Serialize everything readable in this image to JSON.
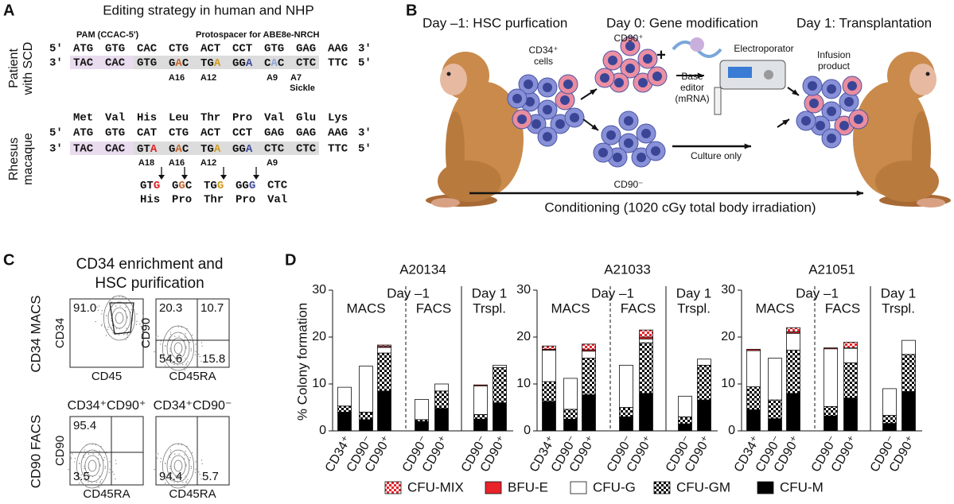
{
  "panel_a": {
    "letter": "A",
    "title": "Editing strategy in human and NHP",
    "human": {
      "label": [
        "Patient",
        "with SCD"
      ],
      "pam": "PAM (CCAC-5')",
      "protospacer": "Protospacer for ABE8e-NRCH",
      "top": {
        "start": "5'",
        "codons": [
          "ATG",
          "GTG",
          "CAC",
          "CTG",
          "ACT",
          "CCT",
          "GTG",
          "GAG",
          "AAG"
        ],
        "end": "3'"
      },
      "bottom": {
        "start": "3'",
        "codons": [
          "TAC",
          "CAC",
          "GTG",
          "GAC",
          "TGA",
          "GGA",
          "CAC",
          "CTC",
          "TTC"
        ],
        "end": "5'"
      },
      "bases": [
        "A16",
        "A12",
        "A9",
        "A7"
      ],
      "sickle": "Sickle"
    },
    "rhesus": {
      "label": [
        "Rhesus",
        "macaque"
      ],
      "amino": [
        "Met",
        "Val",
        "His",
        "Leu",
        "Thr",
        "Pro",
        "Val",
        "Glu",
        "Lys"
      ],
      "top": {
        "start": "5'",
        "codons": [
          "ATG",
          "GTG",
          "CAT",
          "CTG",
          "ACT",
          "CCT",
          "GAG",
          "GAG",
          "AAG"
        ],
        "end": "3'"
      },
      "bottom": {
        "start": "3'",
        "codons": [
          "TAC",
          "CAC",
          "GTA",
          "GAC",
          "TGA",
          "GGA",
          "CTC",
          "CTC",
          "TTC"
        ],
        "end": "5'"
      },
      "bases": [
        "A18",
        "A16",
        "A12",
        "A9"
      ],
      "edited": [
        "GTG",
        "GGC",
        "TGG",
        "GGG",
        "CTC"
      ],
      "edited_amino": [
        "His",
        "Pro",
        "Thr",
        "Pro",
        "Val"
      ]
    }
  },
  "panel_b": {
    "letter": "B",
    "day_minus1": "Day –1: HSC purfication",
    "day0": "Day 0: Gene modification",
    "day1": "Day 1: Transplantation",
    "cd34_cells": [
      "CD34⁺",
      "cells"
    ],
    "cd90_pos": "CD90⁺",
    "plus": "+",
    "base_editor": [
      "Base",
      "editor",
      "(mRNA)"
    ],
    "electroporator": "Electroporator",
    "infusion": [
      "Infusion",
      "product"
    ],
    "culture_only": "Culture only",
    "cd90_neg": "CD90⁻",
    "conditioning": "Conditioning (1020 cGy total body irradiation)"
  },
  "panel_c": {
    "letter": "C",
    "title": [
      "CD34 enrichment and",
      "HSC purification"
    ],
    "rows": [
      "CD34  MACS",
      "CD90  FACS"
    ],
    "plots": [
      {
        "xlabel": "CD45",
        "ylabel": "CD34",
        "numbers": [
          "91.0"
        ]
      },
      {
        "xlabel": "CD45RA",
        "ylabel": "CD90",
        "numbers": [
          "20.3",
          "10.7",
          "54.6",
          "15.8"
        ]
      },
      {
        "title": "CD34⁺CD90⁺",
        "xlabel": "CD45RA",
        "ylabel": "CD90",
        "numbers": [
          "95.4",
          "3.5"
        ]
      },
      {
        "title": "CD34⁺CD90⁻",
        "xlabel": "CD45RA",
        "numbers": [
          "94.4",
          "5.7"
        ]
      }
    ]
  },
  "panel_d": {
    "letter": "D"
  },
  "chart_data": {
    "type": "bar",
    "stacked": true,
    "facets": [
      "A20134",
      "A21033",
      "A21051"
    ],
    "ylabel": "% Colony formation",
    "ylim": [
      0,
      30
    ],
    "yticks": [
      0,
      10,
      20,
      30
    ],
    "days": [
      "Day –1",
      "Day 1"
    ],
    "groups": [
      {
        "label": "MACS",
        "categories": [
          "CD34⁺",
          "CD90⁻",
          "CD90⁺"
        ]
      },
      {
        "label": "FACS",
        "categories": [
          "CD90⁻",
          "CD90⁺"
        ]
      },
      {
        "label": "Trspl.",
        "categories": [
          "CD90⁻",
          "CD90⁺"
        ]
      }
    ],
    "series": [
      {
        "name": "CFU-MIX",
        "color": "#e8232a",
        "pattern": "checker",
        "values": [
          [
            0,
            0,
            0.3,
            0,
            0,
            0,
            0
          ],
          [
            0.7,
            0,
            1.2,
            0,
            1.5,
            0,
            0
          ],
          [
            0,
            0,
            0.9,
            0,
            1.2,
            0,
            0
          ]
        ]
      },
      {
        "name": "BFU-E",
        "color": "#e8232a",
        "values": [
          [
            0,
            0,
            0.2,
            0,
            0,
            0.2,
            0
          ],
          [
            0.2,
            0,
            0.3,
            0,
            0.4,
            0,
            0
          ],
          [
            0.3,
            0,
            0.3,
            0.2,
            0.1,
            0,
            0
          ]
        ]
      },
      {
        "name": "CFU-G",
        "color": "#ffffff",
        "values": [
          [
            4.0,
            9.8,
            1.2,
            4.3,
            1.5,
            6.1,
            0.5
          ],
          [
            6.7,
            6.6,
            1.5,
            9,
            0.8,
            4.4,
            1.3
          ],
          [
            7.7,
            8.9,
            3.6,
            12.3,
            3.1,
            5.7,
            3
          ]
        ]
      },
      {
        "name": "CFU-GM",
        "color": "#000000",
        "pattern": "checker",
        "values": [
          [
            1.3,
            1.6,
            8.1,
            0.4,
            3.7,
            1.0,
            7.5
          ],
          [
            4.2,
            2.1,
            7.8,
            2,
            10.8,
            1.5,
            7.4
          ],
          [
            4.9,
            4,
            9.2,
            2,
            7.5,
            1.7,
            7.9
          ]
        ]
      },
      {
        "name": "CFU-M",
        "color": "#000000",
        "values": [
          [
            4,
            2.4,
            8.5,
            2,
            4.8,
            2.5,
            6
          ],
          [
            6.3,
            2.5,
            7.7,
            3,
            8,
            1.5,
            6.6
          ],
          [
            4.5,
            2.6,
            8,
            3.2,
            7,
            1.6,
            8.4
          ]
        ]
      }
    ]
  }
}
